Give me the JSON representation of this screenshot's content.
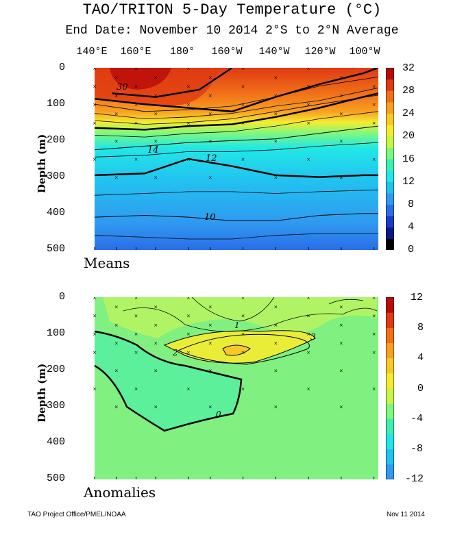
{
  "header": {
    "title": "TAO/TRITON 5-Day Temperature (°C)",
    "subtitle": "End Date: November 10 2014  2°S to 2°N Average"
  },
  "longitude_labels": [
    "140°E",
    "160°E",
    "180°",
    "160°W",
    "140°W",
    "120°W",
    "100°W"
  ],
  "footer": {
    "left": "TAO Project Office/PMEL/NOAA",
    "right": "Nov 11 2014"
  },
  "colors": {
    "scale": [
      "#000000",
      "#0a1a8c",
      "#1a3cc8",
      "#2a6ee8",
      "#2f9af0",
      "#22c2f0",
      "#21e8e6",
      "#3ef0b0",
      "#7ef87e",
      "#c8f44a",
      "#f4ec30",
      "#f8c828",
      "#f8a020",
      "#f07018",
      "#e03a12",
      "#b80a0a"
    ],
    "anomaly_bg": "#80f080"
  },
  "chart_data": [
    {
      "type": "heatmap",
      "panel": "Means",
      "ylabel": "Depth (m)",
      "ylim": [
        500,
        0
      ],
      "yticks": [
        0,
        100,
        200,
        300,
        400,
        500
      ],
      "xticks": [
        "140°E",
        "160°E",
        "180°",
        "160°W",
        "140°W",
        "120°W",
        "100°W"
      ],
      "colorbar": {
        "range": [
          0,
          32
        ],
        "ticks": [
          32,
          28,
          24,
          20,
          16,
          12,
          8,
          4,
          0
        ]
      },
      "contour_labels": [
        "30",
        "14",
        "12",
        "10"
      ],
      "isotherm_depths": {
        "30": {
          "x": [
            145,
            165,
            185,
            200
          ],
          "depth": [
            70,
            80,
            60,
            0
          ]
        },
        "28": {
          "x": [
            137,
            160,
            180,
            200,
            220,
            240,
            260,
            267
          ],
          "depth": [
            85,
            100,
            110,
            120,
            80,
            45,
            15,
            0
          ]
        },
        "20": {
          "x": [
            137,
            160,
            180,
            200,
            220,
            240,
            260,
            267
          ],
          "depth": [
            165,
            170,
            160,
            155,
            135,
            110,
            80,
            70
          ]
        },
        "14": {
          "x": [
            137,
            160,
            180,
            200,
            220,
            240,
            260,
            267
          ],
          "depth": [
            225,
            215,
            205,
            200,
            195,
            180,
            165,
            160
          ]
        },
        "12": {
          "x": [
            137,
            160,
            180,
            200,
            220,
            240,
            260,
            267
          ],
          "depth": [
            295,
            290,
            250,
            270,
            295,
            300,
            295,
            295
          ]
        },
        "10": {
          "x": [
            137,
            160,
            180,
            200,
            220,
            240,
            260,
            267
          ],
          "depth": [
            410,
            405,
            410,
            420,
            420,
            405,
            400,
            400
          ]
        }
      }
    },
    {
      "type": "heatmap",
      "panel": "Anomalies",
      "ylabel": "Depth (m)",
      "ylim": [
        500,
        0
      ],
      "yticks": [
        0,
        100,
        200,
        300,
        400,
        500
      ],
      "xticks": [
        "140°E",
        "160°E",
        "180°",
        "160°W",
        "140°W",
        "120°W",
        "100°W"
      ],
      "colorbar": {
        "range": [
          -12,
          12
        ],
        "ticks": [
          12,
          8,
          4,
          0,
          -4,
          -8,
          -12
        ]
      },
      "contour_labels": [
        "1",
        "3",
        "2",
        "0"
      ]
    }
  ],
  "panels": {
    "means_label": "Means",
    "anomalies_label": "Anomalies"
  }
}
